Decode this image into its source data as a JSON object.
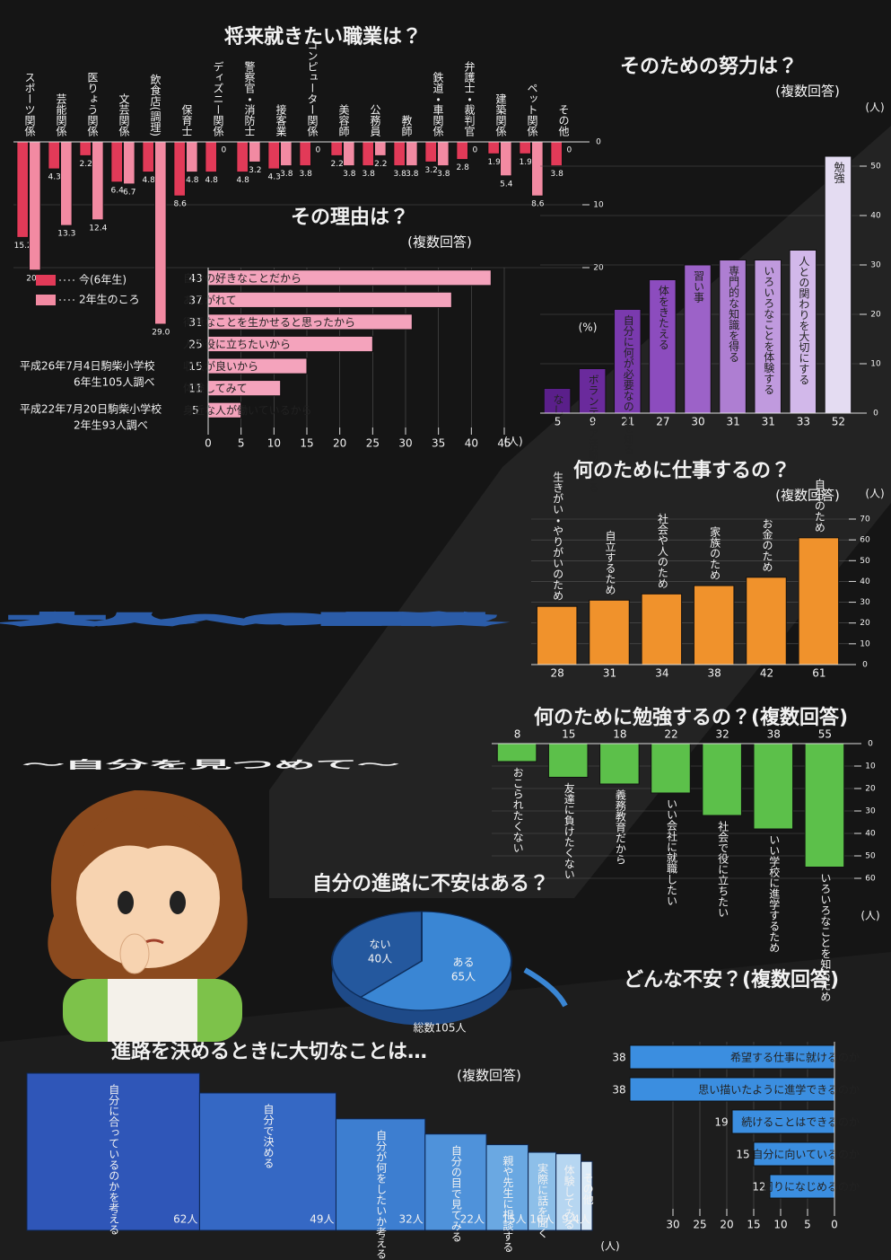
{
  "poster": {
    "title": "大人への階段",
    "subtitle": "〜自分を見つめて〜"
  },
  "chart_data": [
    {
      "type": "bar",
      "direction": "down",
      "title": "将来就きたい職業は？",
      "unit": "(%)",
      "categories": [
        "スポーツ関係",
        "芸能関係",
        "医りょう関係",
        "文芸関係",
        "飲食店(調理)",
        "保育士",
        "ディズニー関係",
        "警察官・消防士",
        "接客業",
        "コンピューター関係",
        "美容師",
        "公務員",
        "教師",
        "鉄道・車関係",
        "弁護士・裁判官",
        "建築関係",
        "ペット関係",
        "その他"
      ],
      "series": [
        {
          "name": "今(6年生)",
          "color": "#e23a58",
          "values": [
            15.2,
            4.3,
            2.2,
            6.4,
            4.8,
            8.6,
            4.8,
            4.8,
            4.3,
            3.8,
            2.2,
            3.8,
            3.8,
            3.2,
            2.8,
            1.9,
            1.9,
            3.8
          ]
        },
        {
          "name": "2年生のころ",
          "color": "#f28aa2",
          "values": [
            20.4,
            13.3,
            12.4,
            6.7,
            29.0,
            4.8,
            0,
            3.2,
            3.8,
            0,
            3.8,
            2.2,
            3.8,
            3.8,
            0,
            5.4,
            8.6,
            0
          ],
          "value_labels": [
            "20.4",
            "13.3",
            "12.4",
            "6.7",
            "29.0",
            "4.8",
            "0",
            "3.2",
            "3.8",
            "0",
            "3.8",
            "2.2",
            "3.8",
            "3.8",
            "0",
            "5.4",
            "8.6",
            "0"
          ]
        }
      ],
      "ylim": [
        0,
        30
      ],
      "yticks": [
        0,
        10,
        20
      ],
      "notes": [
        "平成26年7月4日駒柴小学校",
        "6年生105人調べ",
        "平成22年7月20日駒柴小学校",
        "2年生93人調べ"
      ]
    },
    {
      "type": "bar",
      "direction": "right",
      "title": "その理由は？",
      "note": "(複数回答)",
      "unit": "(人)",
      "categories": [
        "自分の好きなことだから",
        "あこがれて",
        "得意なことを生かせると思ったから",
        "人の役に立ちたいから",
        "収入が良いから",
        "体験してみて",
        "身近な人が働いているから"
      ],
      "values": [
        43,
        37,
        31,
        25,
        15,
        11,
        5
      ],
      "color": "#f4a3bc",
      "xlim": [
        0,
        45
      ],
      "xticks": [
        0,
        5,
        10,
        15,
        20,
        25,
        30,
        35,
        40,
        45
      ]
    },
    {
      "type": "bar",
      "direction": "up",
      "title": "そのための努力は？",
      "note": "(複数回答)",
      "unit": "(人)",
      "categories": [
        "なし",
        "ボランティア活動をする",
        "自分に何が必要なのかを知る",
        "体をきたえる",
        "習い事",
        "専門的な知識を得る",
        "いろいろなことを体験する",
        "人との関わりを大切にする",
        "勉強"
      ],
      "values": [
        5,
        9,
        21,
        27,
        30,
        31,
        31,
        33,
        52
      ],
      "colors": [
        "#5a1f8a",
        "#6a2a9c",
        "#7a3aae",
        "#8c4cbe",
        "#9c62c8",
        "#ae7ed2",
        "#c09ade",
        "#d2b8ea",
        "#e4dcf2"
      ],
      "ylim": [
        0,
        60
      ],
      "yticks": [
        0,
        10,
        20,
        30,
        40,
        50
      ]
    },
    {
      "type": "bar",
      "direction": "up",
      "title": "何のために仕事するの？",
      "note": "(複数回答)",
      "unit": "(人)",
      "categories": [
        "生きがい・やりがいのため",
        "自立するため",
        "社会や人のため",
        "家族のため",
        "お金のため",
        "自分のため"
      ],
      "values": [
        28,
        31,
        34,
        38,
        42,
        61
      ],
      "color": "#f0922c",
      "ylim": [
        0,
        70
      ],
      "yticks": [
        0,
        10,
        20,
        30,
        40,
        50,
        60,
        70
      ]
    },
    {
      "type": "bar",
      "direction": "down",
      "title": "何のために勉強するの？(複数回答)",
      "unit": "(人)",
      "categories": [
        "おこられたくない",
        "友達に負けたくない",
        "義務教育だから",
        "いい会社に就職したい",
        "社会で役に立ちたい",
        "いい学校に進学するため",
        "いろいろなことを知るため"
      ],
      "values": [
        8,
        15,
        18,
        22,
        32,
        38,
        55
      ],
      "color": "#5cc04a",
      "ylim": [
        0,
        60
      ],
      "yticks": [
        0,
        10,
        20,
        30,
        40,
        50,
        60
      ]
    },
    {
      "type": "pie",
      "title": "自分の進路に不安はある？",
      "categories": [
        "ある",
        "ない"
      ],
      "values": [
        65,
        40
      ],
      "value_labels": [
        "65人",
        "40人"
      ],
      "colors": [
        "#3a86d4",
        "#24589e"
      ],
      "total_label": "総数105人"
    },
    {
      "type": "bar",
      "direction": "left",
      "title": "どんな不安？(複数回答)",
      "unit": "(人)",
      "categories": [
        "希望する仕事に就けるのか",
        "思い描いたように進学できるのか",
        "続けることはできるのか",
        "自分に向いているのか",
        "周りになじめるのか"
      ],
      "values": [
        38,
        38,
        19,
        15,
        12
      ],
      "color": "#3b8ee0",
      "xlim": [
        0,
        40
      ],
      "xticks": [
        0,
        5,
        10,
        15,
        20,
        25,
        30
      ]
    },
    {
      "type": "step",
      "title": "進路を決めるときに大切なことは…",
      "note": "(複数回答)",
      "categories": [
        "自分に合っているのかを考える",
        "自分で決める",
        "自分が何をしたいか考える",
        "自分の目で見てみる",
        "親や先生に相談する",
        "実際に話を聞く",
        "体験してみる",
        "その他"
      ],
      "values": [
        62,
        49,
        32,
        22,
        15,
        10,
        9,
        4
      ],
      "value_labels": [
        "62人",
        "49人",
        "32人",
        "22人",
        "15人",
        "10人",
        "9人",
        "4人"
      ],
      "colors": [
        "#2f56b8",
        "#3568c4",
        "#3d7ed0",
        "#4f92da",
        "#6aa8e2",
        "#8dbfe9",
        "#b6d6f1",
        "#dcebf8"
      ]
    }
  ]
}
